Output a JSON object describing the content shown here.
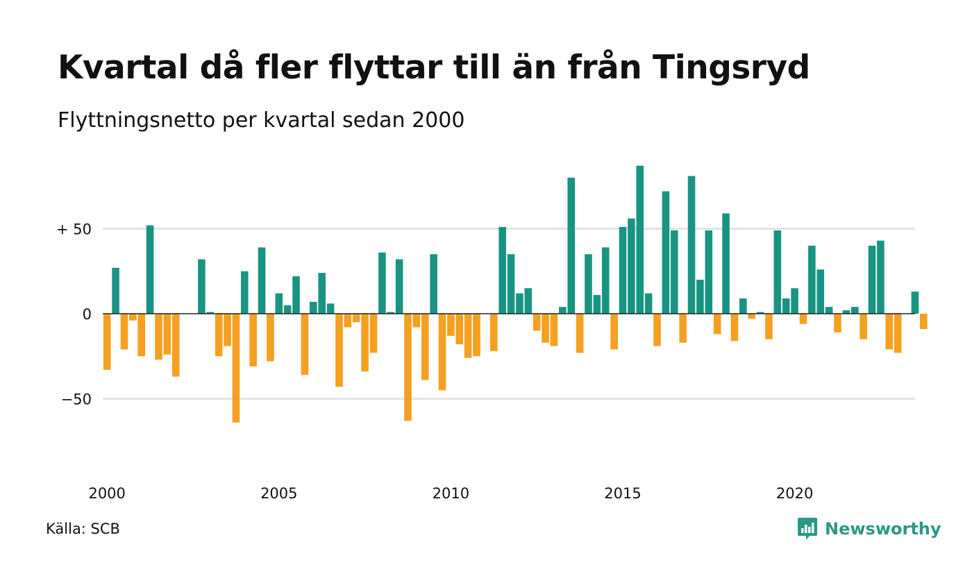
{
  "header": {
    "title": "Kvartal då fler flyttar till än från Tingsryd",
    "subtitle": "Flyttningsnetto per kvartal sedan 2000"
  },
  "footer": {
    "source": "Källa: SCB",
    "brand": "Newsworthy"
  },
  "colors": {
    "positive": "#1a9482",
    "negative": "#f5a020",
    "grid": "#dddddd",
    "brand": "#2a9886"
  },
  "chart_data": {
    "type": "bar",
    "ylim": [
      -80,
      92
    ],
    "grid": true,
    "y_ticks": [
      {
        "value": 50,
        "label": "+ 50"
      },
      {
        "value": 0,
        "label": "0"
      },
      {
        "value": -50,
        "label": "−50"
      }
    ],
    "x_ticks": [
      {
        "index": 0,
        "label": "2000"
      },
      {
        "index": 20,
        "label": "2005"
      },
      {
        "index": 40,
        "label": "2010"
      },
      {
        "index": 60,
        "label": "2015"
      },
      {
        "index": 80,
        "label": "2020"
      }
    ],
    "start_year": 2000,
    "values": [
      -33,
      27,
      -21,
      -4,
      -25,
      52,
      -27,
      -24,
      -37,
      0,
      0,
      32,
      1,
      -25,
      -19,
      -64,
      25,
      -31,
      39,
      -28,
      12,
      5,
      22,
      -36,
      7,
      24,
      6,
      -43,
      -8,
      -5,
      -34,
      -23,
      36,
      1,
      32,
      -63,
      -8,
      -39,
      35,
      -45,
      -13,
      -18,
      -26,
      -25,
      0,
      -22,
      51,
      35,
      12,
      15,
      -10,
      -17,
      -19,
      4,
      80,
      -23,
      35,
      11,
      39,
      -21,
      51,
      56,
      87,
      12,
      -19,
      72,
      49,
      -17,
      81,
      20,
      49,
      -12,
      59,
      -16,
      9,
      -3,
      1,
      -15,
      49,
      9,
      15,
      -6,
      40,
      26,
      4,
      -11,
      2,
      4,
      -15,
      40,
      43,
      -21,
      -23,
      0,
      13,
      -9
    ]
  }
}
